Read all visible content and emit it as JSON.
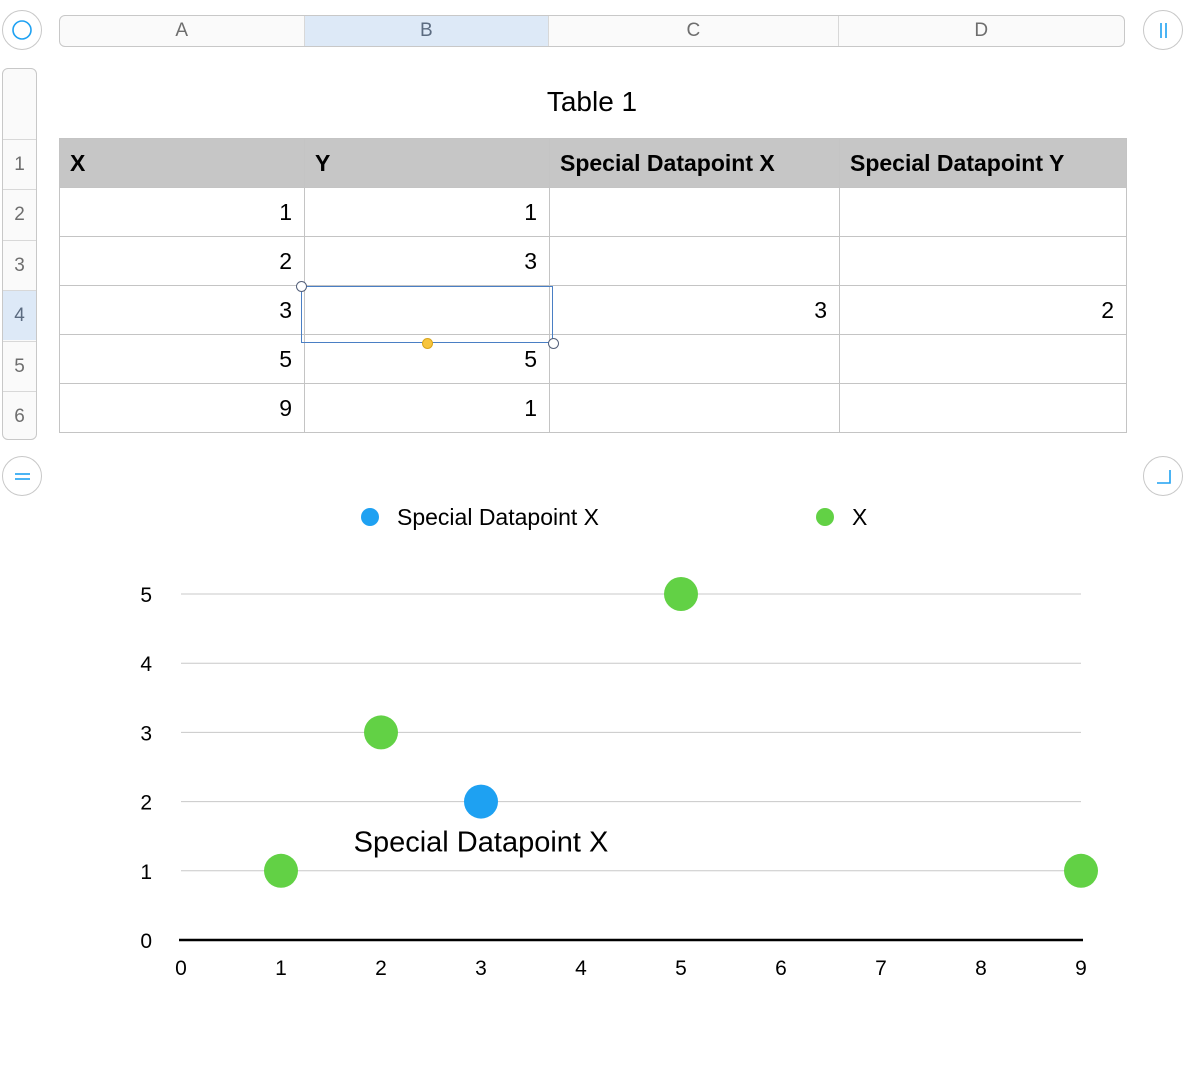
{
  "columns": [
    {
      "label": "A",
      "selected": false
    },
    {
      "label": "B",
      "selected": true
    },
    {
      "label": "C",
      "selected": false
    },
    {
      "label": "D",
      "selected": false
    }
  ],
  "rows": [
    {
      "label": "1",
      "selected": false
    },
    {
      "label": "2",
      "selected": false
    },
    {
      "label": "3",
      "selected": false
    },
    {
      "label": "4",
      "selected": true
    },
    {
      "label": "5",
      "selected": false
    },
    {
      "label": "6",
      "selected": false
    }
  ],
  "table": {
    "title": "Table 1",
    "headers": [
      "X",
      "Y",
      "Special Datapoint X",
      "Special Datapoint Y"
    ],
    "cells": [
      [
        "1",
        "1",
        "",
        ""
      ],
      [
        "2",
        "3",
        "",
        ""
      ],
      [
        "3",
        "",
        "3",
        "2"
      ],
      [
        "5",
        "5",
        "",
        ""
      ],
      [
        "9",
        "1",
        "",
        ""
      ]
    ]
  },
  "colors": {
    "special": "#1ea1f2",
    "x_series": "#62d145"
  },
  "chart_data": {
    "type": "scatter",
    "title": "",
    "xlabel": "",
    "ylabel": "",
    "xlim": [
      0,
      9
    ],
    "ylim": [
      0,
      5
    ],
    "x_ticks": [
      0,
      1,
      2,
      3,
      4,
      5,
      6,
      7,
      8,
      9
    ],
    "y_ticks": [
      0,
      1,
      2,
      3,
      4,
      5
    ],
    "grid": true,
    "legend_position": "top",
    "series": [
      {
        "name": "Special Datapoint X",
        "color": "#1ea1f2",
        "points": [
          [
            3,
            2
          ]
        ]
      },
      {
        "name": "X",
        "color": "#62d145",
        "points": [
          [
            1,
            1
          ],
          [
            2,
            3
          ],
          [
            5,
            5
          ],
          [
            9,
            1
          ]
        ]
      }
    ],
    "annotations": [
      {
        "text": "Special Datapoint X",
        "x": 3,
        "y": 2
      }
    ]
  }
}
